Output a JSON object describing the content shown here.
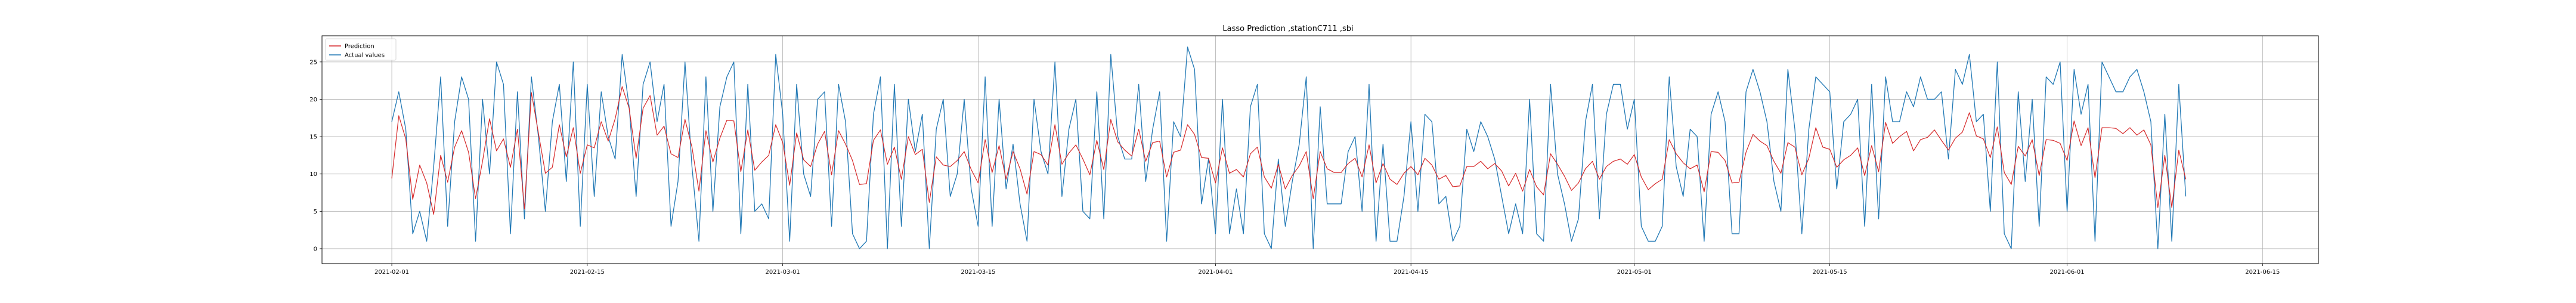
{
  "chart_data": {
    "type": "line",
    "title": "Lasso Prediction ,stationC711 ,sbi",
    "xlabel": "",
    "ylabel": "",
    "x_range": [
      "2021-01-27",
      "2021-06-19"
    ],
    "x_ticks": [
      "2021-02-01",
      "2021-02-15",
      "2021-03-01",
      "2021-03-15",
      "2021-04-01",
      "2021-04-15",
      "2021-05-01",
      "2021-05-15",
      "2021-06-01",
      "2021-06-15"
    ],
    "ylim": [
      -2,
      28.5
    ],
    "y_ticks": [
      0,
      5,
      10,
      15,
      20,
      25
    ],
    "grid": true,
    "legend_position": "top-left",
    "series_start": "2021-02-01",
    "series_end": "2021-06-11",
    "sampling": "hourly",
    "series": [
      {
        "name": "Prediction",
        "color": "#d62728",
        "values": [
          9.4,
          17.8,
          14.7,
          6.6,
          11.2,
          8.8,
          4.6,
          12.5,
          8.9,
          13.6,
          15.8,
          12.9,
          6.7,
          11.7,
          17.4,
          13.1,
          14.7,
          10.9,
          16.0,
          5.3,
          20.9,
          15.5,
          10.1,
          10.9,
          16.6,
          12.3,
          16.2,
          10.1,
          13.9,
          13.5,
          17.0,
          14.4,
          17.4,
          21.7,
          18.8,
          12.1,
          18.8,
          20.5,
          15.2,
          16.4,
          12.7,
          12.2,
          17.3,
          13.6,
          7.7,
          15.8,
          11.6,
          14.8,
          17.2,
          17.1,
          10.3,
          15.9,
          10.5,
          11.6,
          12.5,
          16.6,
          14.2,
          8.5,
          15.5,
          11.9,
          11.0,
          14.0,
          15.7,
          9.9,
          15.8,
          14.0,
          11.8,
          8.6,
          8.7,
          14.5,
          15.9,
          11.3,
          13.6,
          9.3,
          15.0,
          12.6,
          13.3,
          6.2,
          12.3,
          11.2,
          11.0,
          11.8,
          13.0,
          10.6,
          8.8,
          14.6,
          10.2,
          13.8,
          9.3,
          13.0,
          10.7,
          7.3,
          13.0,
          12.6,
          11.2,
          16.6,
          11.3,
          12.8,
          13.9,
          12.0,
          9.9,
          14.5,
          10.6,
          17.3,
          14.3,
          13.2,
          12.4,
          16.0,
          11.7,
          14.2,
          14.4,
          9.6,
          12.9,
          13.2,
          16.6,
          15.3,
          12.2,
          12.1,
          8.8,
          13.5,
          10.1,
          10.6,
          9.6,
          12.7,
          13.6,
          9.6,
          8.1,
          11.3,
          8.0,
          9.8,
          11.1,
          13.0,
          6.7,
          13.0,
          10.7,
          10.2,
          10.2,
          11.4,
          12.1,
          9.6,
          13.9,
          8.8,
          11.4,
          9.3,
          8.6,
          10.1,
          11.0,
          9.9,
          12.1,
          11.2,
          9.3,
          9.8,
          8.3,
          8.4,
          11.0,
          11.0,
          11.7,
          10.7,
          11.4,
          10.4,
          8.4,
          10.1,
          7.7,
          10.6,
          8.3,
          7.2,
          12.7,
          11.3,
          9.7,
          7.8,
          8.8,
          10.7,
          11.7,
          9.3,
          11.0,
          11.7,
          12.0,
          11.3,
          12.6,
          9.6,
          7.9,
          8.7,
          9.3,
          14.6,
          12.7,
          11.5,
          10.7,
          11.2,
          7.6,
          13.0,
          12.9,
          11.8,
          8.8,
          8.9,
          12.9,
          15.3,
          14.4,
          13.8,
          11.7,
          10.1,
          14.2,
          13.6,
          9.9,
          12.1,
          16.2,
          13.6,
          13.3,
          10.9,
          11.9,
          12.5,
          13.5,
          9.8,
          13.8,
          10.3,
          16.9,
          14.1,
          15.0,
          15.7,
          13.1,
          14.6,
          14.9,
          15.9,
          14.5,
          13.2,
          14.8,
          15.6,
          18.2,
          15.1,
          14.7,
          12.2,
          16.3,
          10.2,
          8.6,
          13.7,
          12.4,
          14.6,
          9.8,
          14.6,
          14.5,
          14.1,
          11.8,
          17.1,
          13.8,
          16.2,
          9.5,
          16.2,
          16.2,
          16.1,
          15.4,
          16.2,
          15.2,
          15.9,
          13.9,
          5.5,
          12.5,
          5.5,
          13.2,
          9.3
        ],
        "values_note": "One value per half-day step (condensed view of the hourly trace)."
      },
      {
        "name": "Actual values",
        "color": "#1f77b4",
        "values": [
          17.0,
          21.0,
          16.0,
          2.0,
          5.0,
          1.0,
          11.0,
          23.0,
          3.0,
          17.0,
          23.0,
          20.0,
          1.0,
          20.0,
          10.0,
          25.0,
          22.0,
          2.0,
          21.0,
          4.0,
          23.0,
          15.0,
          5.0,
          17.0,
          22.0,
          9.0,
          25.0,
          3.0,
          22.0,
          7.0,
          21.0,
          15.0,
          12.0,
          26.0,
          19.0,
          7.0,
          22.0,
          25.0,
          17.0,
          22.0,
          3.0,
          9.0,
          25.0,
          11.0,
          1.0,
          23.0,
          5.0,
          19.0,
          23.0,
          25.0,
          2.0,
          22.0,
          5.0,
          6.0,
          4.0,
          26.0,
          18.0,
          1.0,
          22.0,
          10.0,
          7.0,
          20.0,
          21.0,
          3.0,
          22.0,
          17.0,
          2.0,
          0.0,
          1.0,
          18.0,
          23.0,
          0.0,
          22.0,
          3.0,
          20.0,
          13.0,
          18.0,
          0.0,
          16.0,
          20.0,
          7.0,
          10.0,
          20.0,
          8.0,
          3.0,
          23.0,
          3.0,
          20.0,
          8.0,
          14.0,
          6.0,
          1.0,
          20.0,
          13.0,
          10.0,
          25.0,
          7.0,
          16.0,
          20.0,
          5.0,
          4.0,
          21.0,
          4.0,
          26.0,
          15.0,
          12.0,
          12.0,
          22.0,
          9.0,
          16.0,
          21.0,
          1.0,
          17.0,
          15.0,
          27.0,
          24.0,
          6.0,
          12.0,
          2.0,
          20.0,
          2.0,
          8.0,
          2.0,
          19.0,
          22.0,
          2.0,
          0.0,
          12.0,
          3.0,
          9.0,
          14.0,
          23.0,
          0.0,
          19.0,
          6.0,
          6.0,
          6.0,
          13.0,
          15.0,
          5.0,
          22.0,
          1.0,
          14.0,
          1.0,
          1.0,
          7.0,
          17.0,
          5.0,
          18.0,
          17.0,
          6.0,
          7.0,
          1.0,
          3.0,
          16.0,
          13.0,
          17.0,
          15.0,
          12.0,
          7.0,
          2.0,
          6.0,
          2.0,
          20.0,
          2.0,
          1.0,
          22.0,
          10.0,
          6.0,
          1.0,
          4.0,
          17.0,
          22.0,
          4.0,
          18.0,
          22.0,
          22.0,
          16.0,
          20.0,
          3.0,
          1.0,
          1.0,
          3.0,
          23.0,
          11.0,
          7.0,
          16.0,
          15.0,
          1.0,
          18.0,
          21.0,
          17.0,
          2.0,
          2.0,
          21.0,
          24.0,
          21.0,
          17.0,
          9.0,
          5.0,
          24.0,
          16.0,
          2.0,
          16.0,
          23.0,
          22.0,
          21.0,
          8.0,
          17.0,
          18.0,
          20.0,
          3.0,
          22.0,
          4.0,
          23.0,
          17.0,
          17.0,
          21.0,
          19.0,
          23.0,
          20.0,
          20.0,
          21.0,
          12.0,
          24.0,
          22.0,
          26.0,
          17.0,
          18.0,
          5.0,
          25.0,
          2.0,
          0.0,
          21.0,
          9.0,
          20.0,
          3.0,
          23.0,
          22.0,
          25.0,
          5.0,
          24.0,
          18.0,
          22.0,
          1.0,
          25.0,
          23.0,
          21.0,
          21.0,
          23.0,
          24.0,
          21.0,
          17.0,
          0.0,
          18.0,
          1.0,
          22.0,
          7.0
        ],
        "values_note": "One value per half-day step (condensed view of the hourly trace)."
      }
    ]
  }
}
